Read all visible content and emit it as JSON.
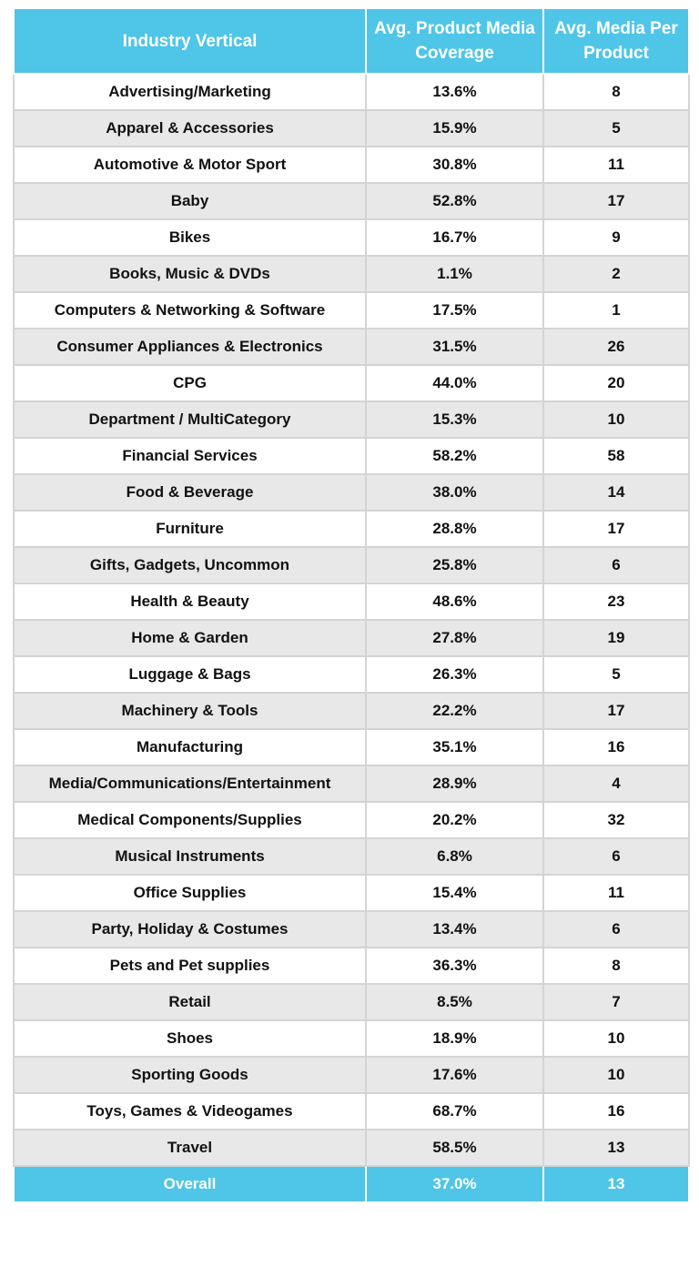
{
  "table": {
    "header": [
      "Industry Vertical",
      "Avg. Product Media Coverage",
      "Avg. Media Per Product"
    ],
    "rows": [
      [
        "Advertising/Marketing",
        "13.6%",
        "8"
      ],
      [
        "Apparel & Accessories",
        "15.9%",
        "5"
      ],
      [
        "Automotive & Motor Sport",
        "30.8%",
        "11"
      ],
      [
        "Baby",
        "52.8%",
        "17"
      ],
      [
        "Bikes",
        "16.7%",
        "9"
      ],
      [
        "Books, Music & DVDs",
        "1.1%",
        "2"
      ],
      [
        "Computers & Networking & Software",
        "17.5%",
        "1"
      ],
      [
        "Consumer Appliances & Electronics",
        "31.5%",
        "26"
      ],
      [
        "CPG",
        "44.0%",
        "20"
      ],
      [
        "Department / MultiCategory",
        "15.3%",
        "10"
      ],
      [
        "Financial Services",
        "58.2%",
        "58"
      ],
      [
        "Food & Beverage",
        "38.0%",
        "14"
      ],
      [
        "Furniture",
        "28.8%",
        "17"
      ],
      [
        "Gifts, Gadgets, Uncommon",
        "25.8%",
        "6"
      ],
      [
        "Health & Beauty",
        "48.6%",
        "23"
      ],
      [
        "Home & Garden",
        "27.8%",
        "19"
      ],
      [
        "Luggage & Bags",
        "26.3%",
        "5"
      ],
      [
        "Machinery & Tools",
        "22.2%",
        "17"
      ],
      [
        "Manufacturing",
        "35.1%",
        "16"
      ],
      [
        "Media/Communications/Entertainment",
        "28.9%",
        "4"
      ],
      [
        "Medical Components/Supplies",
        "20.2%",
        "32"
      ],
      [
        "Musical Instruments",
        "6.8%",
        "6"
      ],
      [
        "Office Supplies",
        "15.4%",
        "11"
      ],
      [
        "Party, Holiday & Costumes",
        "13.4%",
        "6"
      ],
      [
        "Pets and Pet supplies",
        "36.3%",
        "8"
      ],
      [
        "Retail",
        "8.5%",
        "7"
      ],
      [
        "Shoes",
        "18.9%",
        "10"
      ],
      [
        "Sporting Goods",
        "17.6%",
        "10"
      ],
      [
        "Toys, Games & Videogames",
        "68.7%",
        "16"
      ],
      [
        "Travel",
        "58.5%",
        "13"
      ]
    ],
    "total": [
      "Overall",
      "37.0%",
      "13"
    ]
  }
}
